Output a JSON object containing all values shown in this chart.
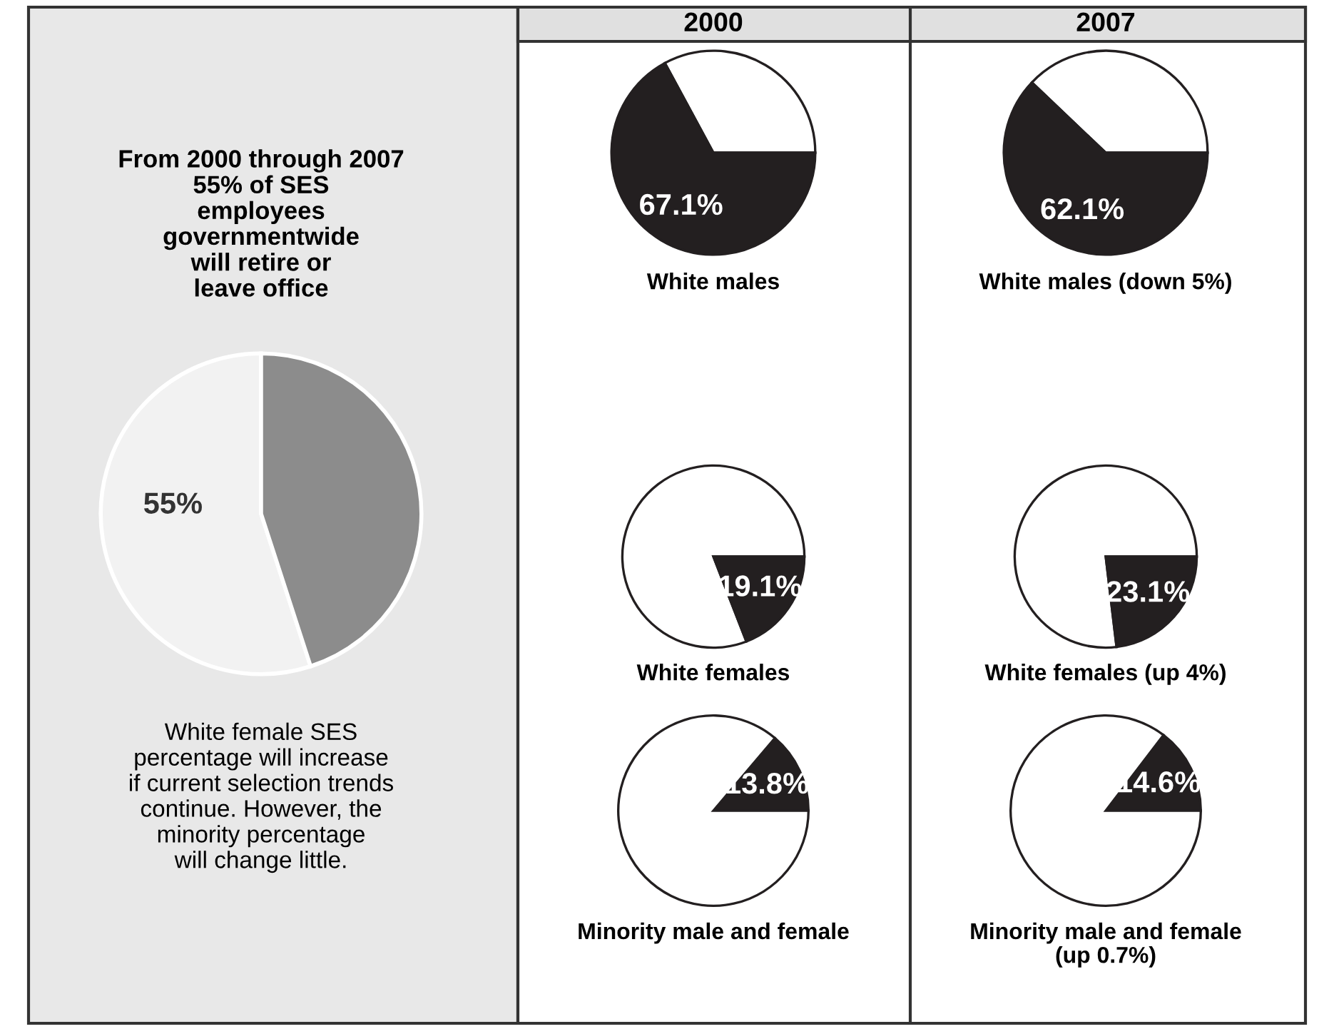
{
  "chart_data": [
    {
      "type": "pie",
      "title": "From 2000 through 2007\n55% of SES\nemployees\ngovernmentwide\nwill retire or\nleave office",
      "categories": [
        null,
        null
      ],
      "values": [
        55,
        45
      ],
      "colors": [
        "#f2f2f2",
        "#8c8c8c"
      ],
      "value_labels": [
        "55%",
        null
      ],
      "annotations": [
        "White female SES\npercentage will increase\nif current selection trends\ncontinue. However, the\nminority percentage\nwill change little."
      ]
    },
    {
      "type": "pie",
      "title": "2000",
      "xlabel": "White males",
      "categories": [
        null,
        null
      ],
      "values": [
        32.9,
        67.1
      ],
      "colors": [
        "#ffffff",
        "#231f20"
      ],
      "value_labels": [
        null,
        "67.1%"
      ]
    },
    {
      "type": "pie",
      "title": "2007",
      "xlabel": "White males (down 5%)",
      "categories": [
        null,
        null
      ],
      "values": [
        37.9,
        62.1
      ],
      "colors": [
        "#ffffff",
        "#231f20"
      ],
      "value_labels": [
        null,
        "62.1%"
      ]
    },
    {
      "type": "pie",
      "xlabel": "White females",
      "categories": [
        null,
        null
      ],
      "values": [
        80.9,
        19.1
      ],
      "colors": [
        "#ffffff",
        "#231f20"
      ],
      "value_labels": [
        null,
        "19.1%"
      ]
    },
    {
      "type": "pie",
      "xlabel": "White females (up 4%)",
      "categories": [
        null,
        null
      ],
      "values": [
        76.9,
        23.1
      ],
      "colors": [
        "#ffffff",
        "#231f20"
      ],
      "value_labels": [
        null,
        "23.1%"
      ]
    },
    {
      "type": "pie",
      "xlabel": "Minority male and female",
      "categories": [
        null,
        null
      ],
      "values": [
        13.8,
        86.2
      ],
      "colors": [
        "#231f20",
        "#ffffff"
      ],
      "value_labels": [
        "13.8%",
        null
      ]
    },
    {
      "type": "pie",
      "xlabel": "Minority male and female\n(up 0.7%)",
      "categories": [
        null,
        null
      ],
      "values": [
        14.6,
        85.4
      ],
      "colors": [
        "#231f20",
        "#ffffff"
      ],
      "value_labels": [
        "14.6%",
        null
      ]
    }
  ]
}
